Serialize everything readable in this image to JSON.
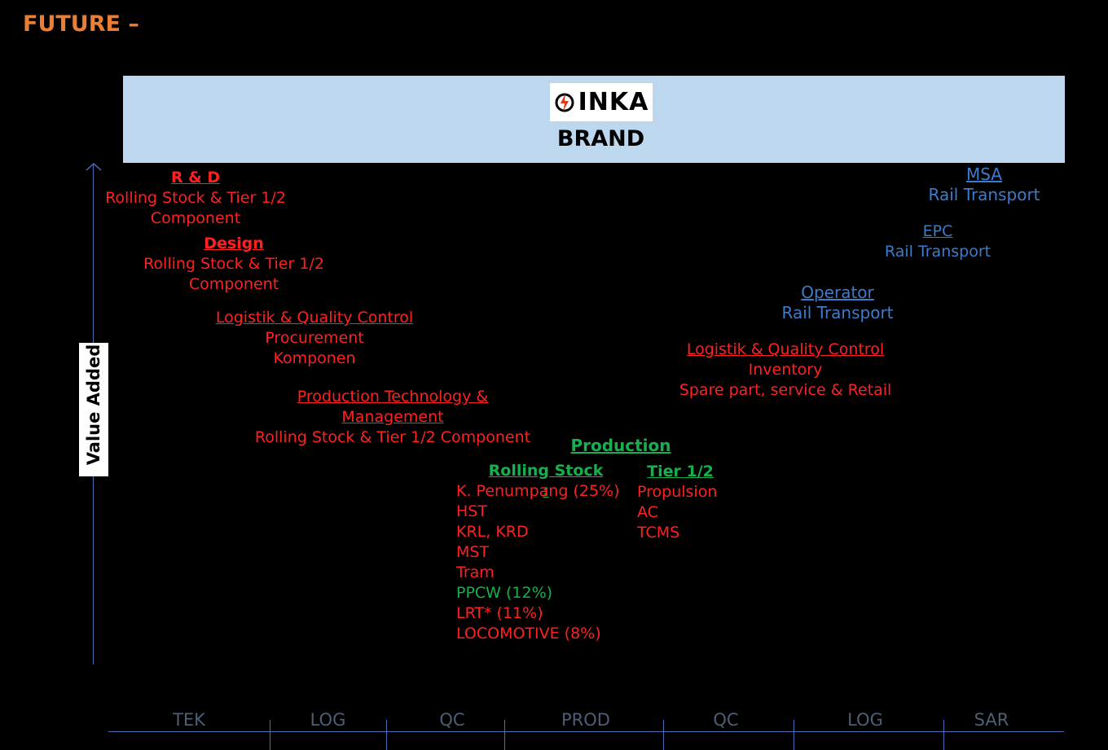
{
  "title": "FUTURE –",
  "banner": {
    "logo_text": "INKA",
    "brand": "BRAND"
  },
  "axis": {
    "label": "Value Added"
  },
  "blocks": {
    "rnd": {
      "heading": "R & D",
      "line1": "Rolling Stock & Tier 1/2",
      "line2": "Component"
    },
    "design": {
      "heading": "Design",
      "line1": "Rolling Stock & Tier 1/2",
      "line2": "Component"
    },
    "logistik_left": {
      "heading": "Logistik & Quality Control",
      "line1": "Procurement",
      "line2": "Komponen"
    },
    "prod_tech": {
      "heading_line1": "Production Technology &",
      "heading_line2": "Management",
      "line1": "Rolling Stock & Tier 1/2 Component"
    },
    "msa": {
      "heading": "MSA",
      "line1": "Rail Transport"
    },
    "epc": {
      "heading": "EPC",
      "line1": "Rail Transport"
    },
    "operator": {
      "heading": "Operator",
      "line1": "Rail Transport"
    },
    "logistik_right": {
      "heading": "Logistik & Quality Control",
      "line1": "Inventory",
      "line2": "Spare part, service & Retail"
    },
    "production": {
      "heading": "Production"
    },
    "rolling_stock": {
      "heading": "Rolling Stock :",
      "items": [
        "K. Penumpang (25%)",
        "HST",
        "KRL, KRD",
        "MST",
        "Tram",
        "PPCW (12%)",
        "LRT* (11%)",
        "LOCOMOTIVE (8%)"
      ]
    },
    "tier": {
      "heading": "Tier 1/2",
      "items": [
        "Propulsion",
        "AC",
        "TCMS"
      ]
    }
  },
  "stages": [
    "TEK",
    "LOG",
    "QC",
    "PROD",
    "QC",
    "LOG",
    "SAR"
  ],
  "colors": {
    "title": "#ed7d31",
    "banner": "#bdd7ee",
    "red": "#ff2020",
    "blue": "#3d7ccc",
    "green": "#16b04c",
    "axis": "#4a6fb5",
    "stage_text": "#4f5f73"
  }
}
